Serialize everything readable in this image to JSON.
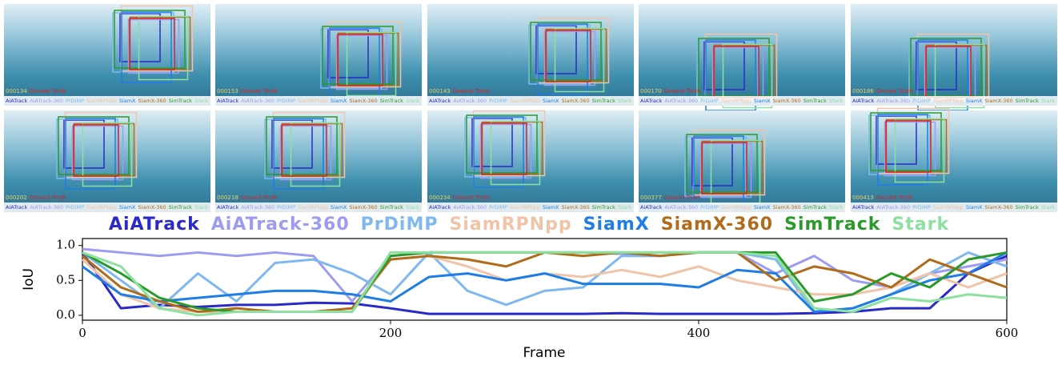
{
  "panels": [
    {
      "frame": "000134"
    },
    {
      "frame": "000153"
    },
    {
      "frame": "000143"
    },
    {
      "frame": "000170"
    },
    {
      "frame": "000186"
    },
    {
      "frame": "000202"
    },
    {
      "frame": "000218"
    },
    {
      "frame": "000234"
    },
    {
      "frame": "000377"
    },
    {
      "frame": "000413"
    }
  ],
  "ground_truth_label": "Ground Truth",
  "chart_data": {
    "type": "line",
    "xlabel": "Frame",
    "ylabel": "IoU",
    "x": [
      0,
      25,
      50,
      75,
      100,
      125,
      150,
      175,
      200,
      225,
      250,
      275,
      300,
      325,
      350,
      375,
      400,
      425,
      450,
      475,
      500,
      525,
      550,
      575,
      600
    ],
    "xlim": [
      0,
      600
    ],
    "xticks": [
      0,
      200,
      400,
      600
    ],
    "ylim": [
      -0.07,
      1.1
    ],
    "yticks": [
      {
        "value": 0,
        "label": "0.0"
      },
      {
        "value": 0.5,
        "label": "0.5"
      },
      {
        "value": 1,
        "label": "1.0"
      }
    ],
    "series": [
      {
        "name": "AiATrack",
        "color": "#2a2ac8",
        "values": [
          0.9,
          0.1,
          0.15,
          0.12,
          0.15,
          0.15,
          0.18,
          0.17,
          0.1,
          0.02,
          0.02,
          0.02,
          0.02,
          0.02,
          0.03,
          0.02,
          0.02,
          0.02,
          0.02,
          0.03,
          0.05,
          0.1,
          0.1,
          0.6,
          0.85
        ]
      },
      {
        "name": "AiATrack-360",
        "color": "#9d9cf0",
        "values": [
          0.95,
          0.9,
          0.85,
          0.9,
          0.85,
          0.9,
          0.85,
          0.2,
          0.85,
          0.9,
          0.9,
          0.9,
          0.9,
          0.9,
          0.88,
          0.85,
          0.9,
          0.9,
          0.6,
          0.85,
          0.5,
          0.4,
          0.6,
          0.7,
          0.8
        ]
      },
      {
        "name": "PrDiMP",
        "color": "#7fb8ef",
        "values": [
          0.9,
          0.5,
          0.1,
          0.6,
          0.2,
          0.75,
          0.8,
          0.6,
          0.3,
          0.9,
          0.35,
          0.15,
          0.35,
          0.4,
          0.85,
          0.85,
          0.9,
          0.9,
          0.8,
          0.05,
          0.1,
          0.3,
          0.6,
          0.9,
          0.7
        ]
      },
      {
        "name": "SiamRPNpp",
        "color": "#efc4a8",
        "values": [
          0.8,
          0.3,
          0.1,
          0.05,
          0.05,
          0.05,
          0.05,
          0.05,
          0.8,
          0.85,
          0.7,
          0.5,
          0.6,
          0.55,
          0.65,
          0.55,
          0.7,
          0.5,
          0.4,
          0.3,
          0.3,
          0.4,
          0.6,
          0.4,
          0.6
        ]
      },
      {
        "name": "SiamX",
        "color": "#1f7de6",
        "values": [
          0.7,
          0.3,
          0.2,
          0.25,
          0.3,
          0.35,
          0.35,
          0.3,
          0.2,
          0.55,
          0.6,
          0.5,
          0.6,
          0.45,
          0.45,
          0.45,
          0.4,
          0.65,
          0.6,
          0.05,
          0.1,
          0.3,
          0.5,
          0.6,
          0.9
        ]
      },
      {
        "name": "SiamX-360",
        "color": "#b06c1a",
        "values": [
          0.85,
          0.4,
          0.2,
          0.05,
          0.1,
          0.05,
          0.05,
          0.1,
          0.8,
          0.85,
          0.8,
          0.7,
          0.9,
          0.85,
          0.9,
          0.85,
          0.9,
          0.9,
          0.5,
          0.7,
          0.6,
          0.4,
          0.8,
          0.6,
          0.4
        ]
      },
      {
        "name": "SimTrack",
        "color": "#2a9a2a",
        "values": [
          0.9,
          0.6,
          0.25,
          0.1,
          0.05,
          0.05,
          0.05,
          0.05,
          0.85,
          0.9,
          0.9,
          0.9,
          0.9,
          0.9,
          0.9,
          0.9,
          0.9,
          0.9,
          0.9,
          0.2,
          0.3,
          0.6,
          0.4,
          0.8,
          0.9
        ]
      },
      {
        "name": "Stark",
        "color": "#8ee0a0",
        "values": [
          0.9,
          0.7,
          0.1,
          0.0,
          0.05,
          0.05,
          0.05,
          0.05,
          0.9,
          0.9,
          0.9,
          0.9,
          0.9,
          0.9,
          0.9,
          0.9,
          0.9,
          0.9,
          0.85,
          0.1,
          0.05,
          0.25,
          0.2,
          0.3,
          0.25
        ]
      }
    ]
  }
}
